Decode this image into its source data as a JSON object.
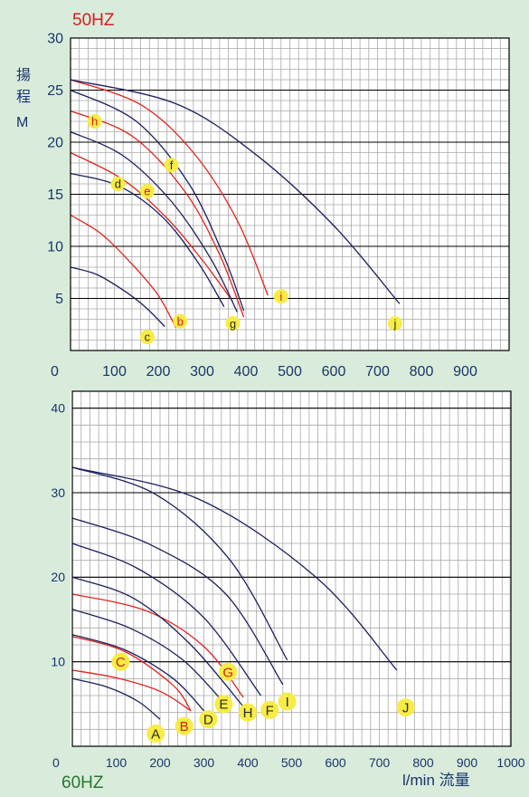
{
  "colors": {
    "background": "#d9ecdb",
    "plot_background": "#ffffff",
    "grid": "#a9a9a9",
    "major_grid": "#000000",
    "blue_curve": "#1b1f5e",
    "red_curve": "#e0231a",
    "marker": "#f7ec45",
    "marker_text_red": "#d31f1f",
    "marker_text_dark": "#2a2a2a",
    "axis_text": "#17356b",
    "hz50_text": "#d31f1f",
    "hz60_text": "#27762f"
  },
  "chart_data": [
    {
      "type": "line",
      "title": "50HZ",
      "ylabel_top": "揚",
      "ylabel_mid": "程",
      "ylabel_unit": "M",
      "xlim": [
        0,
        1000
      ],
      "ylim": [
        0,
        30
      ],
      "x_ticks": [
        0,
        100,
        200,
        300,
        400,
        500,
        600,
        700,
        800,
        900
      ],
      "y_ticks": [
        5,
        10,
        15,
        20,
        25,
        30
      ],
      "grid": true,
      "series": [
        {
          "name": "c",
          "color": "blue",
          "x": [
            0,
            60,
            120,
            170,
            215
          ],
          "y": [
            8,
            7.3,
            5.8,
            4.2,
            2.3
          ],
          "label_at": [
            175,
            1.3
          ]
        },
        {
          "name": "b",
          "color": "red",
          "x": [
            0,
            70,
            140,
            200,
            240
          ],
          "y": [
            13,
            11.2,
            8.3,
            5.3,
            2.2
          ],
          "label_at": [
            250,
            2.8
          ]
        },
        {
          "name": "d",
          "color": "blue",
          "x": [
            0,
            110,
            210,
            290,
            350
          ],
          "y": [
            17,
            15.8,
            12.8,
            8.5,
            4.2
          ],
          "label_at": [
            108,
            16
          ]
        },
        {
          "name": "e",
          "color": "red",
          "x": [
            0,
            120,
            220,
            300,
            370
          ],
          "y": [
            19,
            16.4,
            12.7,
            8.7,
            4.7
          ],
          "label_at": [
            175,
            15.3
          ]
        },
        {
          "name": "g",
          "color": "blue",
          "x": [
            0,
            120,
            230,
            320,
            380
          ],
          "y": [
            21,
            18.7,
            14.3,
            8.8,
            3.7
          ],
          "label_at": [
            370,
            2.6
          ]
        },
        {
          "name": "h",
          "color": "red",
          "x": [
            0,
            140,
            260,
            340,
            395
          ],
          "y": [
            23,
            20.6,
            15.3,
            9.2,
            3.2
          ],
          "label_at": [
            55,
            22
          ]
        },
        {
          "name": "f",
          "color": "blue",
          "x": [
            0,
            150,
            270,
            350,
            395
          ],
          "y": [
            25,
            22,
            16,
            9,
            3.8
          ],
          "label_at": [
            230,
            17.8
          ]
        },
        {
          "name": "i",
          "color": "red",
          "x": [
            0,
            160,
            280,
            380,
            450
          ],
          "y": [
            26,
            23.6,
            19,
            12.5,
            5.3
          ],
          "label_at": [
            480,
            5.2
          ]
        },
        {
          "name": "j",
          "color": "blue",
          "x": [
            0,
            240,
            420,
            600,
            750
          ],
          "y": [
            26,
            23.7,
            18.9,
            12,
            4.5
          ],
          "label_at": [
            740,
            2.6
          ]
        }
      ]
    },
    {
      "type": "line",
      "title": "60HZ",
      "xlabel": "l/min 流量",
      "xlim": [
        0,
        1000
      ],
      "ylim": [
        0,
        42
      ],
      "x_ticks": [
        0,
        100,
        200,
        300,
        400,
        500,
        600,
        700,
        800,
        900,
        1000
      ],
      "y_ticks": [
        10,
        20,
        30,
        40
      ],
      "grid": true,
      "series": [
        {
          "name": "A",
          "color": "blue",
          "x": [
            0,
            80,
            150,
            200
          ],
          "y": [
            8,
            7,
            5.3,
            3.2
          ],
          "label_at": [
            190,
            1.5
          ]
        },
        {
          "name": "B",
          "color": "red",
          "x": [
            0,
            100,
            200,
            270
          ],
          "y": [
            9,
            8.1,
            6.5,
            4.2
          ],
          "label_at": [
            255,
            2.4
          ]
        },
        {
          "name": "C",
          "color": "red",
          "x": [
            0,
            120,
            230,
            270
          ],
          "y": [
            13,
            11.2,
            7.2,
            4.2
          ],
          "label_at": [
            110,
            10
          ]
        },
        {
          "name": "D",
          "color": "blue",
          "x": [
            0,
            120,
            230,
            300
          ],
          "y": [
            13.2,
            11.4,
            8,
            4.2
          ],
          "label_at": [
            310,
            3.2
          ]
        },
        {
          "name": "E",
          "color": "blue",
          "x": [
            0,
            130,
            250,
            345
          ],
          "y": [
            16.2,
            14,
            10.3,
            5.2
          ],
          "label_at": [
            345,
            5
          ]
        },
        {
          "name": "G",
          "color": "red",
          "x": [
            0,
            170,
            300,
            390
          ],
          "y": [
            18,
            16,
            11.8,
            5.8
          ],
          "label_at": [
            355,
            8.8
          ]
        },
        {
          "name": "H",
          "color": "blue",
          "x": [
            0,
            140,
            270,
            390
          ],
          "y": [
            20,
            17.5,
            12,
            4.7
          ],
          "label_at": [
            400,
            4
          ]
        },
        {
          "name": "F",
          "color": "blue",
          "x": [
            0,
            150,
            300,
            430
          ],
          "y": [
            24,
            21,
            15.2,
            6
          ],
          "label_at": [
            450,
            4.3
          ]
        },
        {
          "name": "I",
          "color": "blue",
          "x": [
            0,
            180,
            350,
            480
          ],
          "y": [
            27,
            23.8,
            18,
            7.3
          ],
          "label_at": [
            490,
            5.3
          ]
        },
        {
          "name": "J",
          "color": "blue",
          "x": [
            0,
            290,
            560,
            740
          ],
          "y": [
            33,
            29.2,
            19.8,
            9
          ],
          "label_at": [
            760,
            4.6
          ]
        },
        {
          "name": "",
          "color": "blue",
          "x": [
            0,
            190,
            360,
            490
          ],
          "y": [
            33,
            29.8,
            22,
            10.2
          ],
          "label_at": null
        }
      ]
    }
  ]
}
